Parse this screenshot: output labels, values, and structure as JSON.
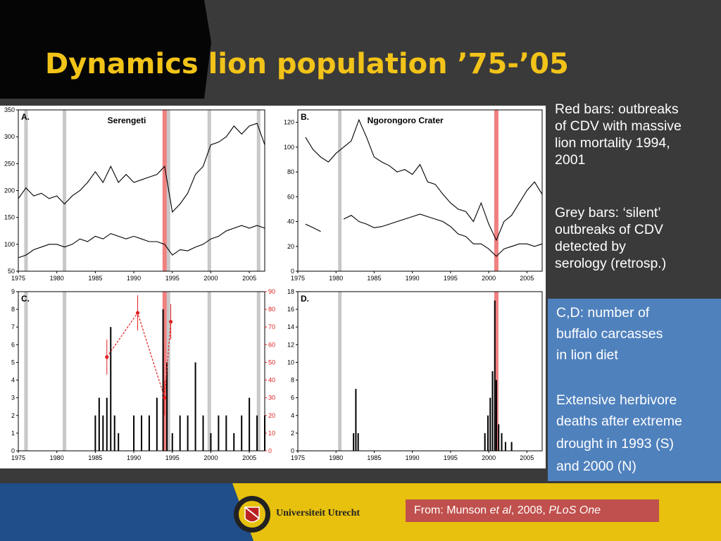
{
  "slide": {
    "title": "Dynamics lion population ’75-’05",
    "colors": {
      "background": "#3a3a3a",
      "title": "#f2c318",
      "blue_box": "#4f81bd",
      "source_box": "#c0504d",
      "outbreak_red": "#f08080",
      "silent_grey": "#c8c8c8",
      "bottom_band": "#e7c10e"
    }
  },
  "annotations": {
    "red_bars_1": "Red bars: outbreaks",
    "red_bars_2": "of CDV with massive",
    "red_bars_3": "lion mortality 1994,",
    "red_bars_4": "2001",
    "grey_bars_1": "Grey bars: ‘silent’",
    "grey_bars_2": "outbreaks of CDV",
    "grey_bars_3": "detected by",
    "grey_bars_4": "serology (retrosp.)",
    "cd_1": "C,D: number of",
    "cd_2": "buffalo carcasses",
    "cd_3": "in lion diet",
    "drought_1": "Extensive herbivore",
    "drought_2": "deaths after extreme",
    "drought_3": "drought in 1993 (S)",
    "drought_4": "and 2000 (N)"
  },
  "source": {
    "prefix": "From:  Munson ",
    "etal": "et al",
    "mid": ", 2008, ",
    "journal": "PLoS One"
  },
  "footer": {
    "university": "Universiteit Utrecht",
    "logo_icon": "utrecht-sun-seal-icon"
  },
  "chart_data": [
    {
      "panel": "A.",
      "title": "Serengeti",
      "type": "line",
      "xlim": [
        1975,
        2007
      ],
      "ylim": [
        50,
        350
      ],
      "xticks": [
        "1975",
        "1980",
        "1985",
        "1990",
        "1995",
        "2000",
        "2005"
      ],
      "yticks": [
        "50",
        "100",
        "150",
        "200",
        "250",
        "300",
        "350"
      ],
      "outbreak_years": [
        1994
      ],
      "silent_years": [
        1976,
        1981,
        1994.5,
        1999.8,
        2006.2
      ],
      "series": [
        {
          "x": [
            1975,
            1976,
            1977,
            1978,
            1979,
            1980,
            1981,
            1982,
            1983,
            1984,
            1985,
            1986,
            1987,
            1988,
            1989,
            1990,
            1991,
            1992,
            1993,
            1994,
            1995,
            1996,
            1997,
            1998,
            1999,
            2000,
            2001,
            2002,
            2003,
            2004,
            2005,
            2006,
            2007
          ],
          "values": [
            185,
            205,
            190,
            195,
            185,
            190,
            175,
            190,
            200,
            215,
            235,
            215,
            245,
            215,
            230,
            215,
            220,
            225,
            230,
            245,
            160,
            175,
            195,
            230,
            245,
            285,
            290,
            300,
            320,
            305,
            320,
            325,
            285
          ]
        },
        {
          "x": [
            1975,
            1976,
            1977,
            1978,
            1979,
            1980,
            1981,
            1982,
            1983,
            1984,
            1985,
            1986,
            1987,
            1988,
            1989,
            1990,
            1991,
            1992,
            1993,
            1994,
            1995,
            1996,
            1997,
            1998,
            1999,
            2000,
            2001,
            2002,
            2003,
            2004,
            2005,
            2006,
            2007
          ],
          "values": [
            75,
            80,
            90,
            95,
            100,
            100,
            95,
            100,
            110,
            105,
            115,
            110,
            120,
            115,
            110,
            115,
            110,
            105,
            105,
            100,
            80,
            90,
            88,
            95,
            100,
            110,
            115,
            125,
            130,
            135,
            130,
            135,
            130
          ]
        }
      ]
    },
    {
      "panel": "B.",
      "title": "Ngorongoro Crater",
      "type": "line",
      "xlim": [
        1975,
        2007
      ],
      "ylim": [
        0,
        130
      ],
      "xticks": [
        "1975",
        "1980",
        "1985",
        "1990",
        "1995",
        "2000",
        "2005"
      ],
      "yticks": [
        "0",
        "20",
        "40",
        "60",
        "80",
        "100",
        "120"
      ],
      "outbreak_years": [
        2001
      ],
      "silent_years": [
        1980.5
      ],
      "series": [
        {
          "x": [
            1976,
            1977,
            1978,
            1979,
            1980,
            1981,
            1982,
            1983,
            1984,
            1985,
            1986,
            1987,
            1988,
            1989,
            1990,
            1991,
            1992,
            1993,
            1994,
            1995,
            1996,
            1997,
            1998,
            1999,
            2000,
            2001,
            2002,
            2003,
            2004,
            2005,
            2006,
            2007
          ],
          "values": [
            108,
            98,
            92,
            88,
            95,
            100,
            105,
            122,
            108,
            92,
            88,
            85,
            80,
            82,
            78,
            86,
            72,
            70,
            62,
            55,
            50,
            48,
            40,
            55,
            38,
            25,
            40,
            45,
            55,
            65,
            72,
            62
          ]
        },
        {
          "x": [
            1976,
            1977,
            1978,
            1979,
            1980,
            1981,
            1982,
            1983,
            1984,
            1985,
            1986,
            1987,
            1988,
            1989,
            1990,
            1991,
            1992,
            1993,
            1994,
            1995,
            1996,
            1997,
            1998,
            1999,
            2000,
            2001,
            2002,
            2003,
            2004,
            2005,
            2006,
            2007
          ],
          "values": [
            38,
            35,
            32,
            null,
            null,
            42,
            45,
            40,
            38,
            35,
            36,
            38,
            40,
            42,
            44,
            46,
            44,
            42,
            40,
            36,
            30,
            28,
            22,
            22,
            18,
            12,
            18,
            20,
            22,
            22,
            20,
            22
          ]
        }
      ]
    },
    {
      "panel": "C.",
      "type": "bar",
      "xlim": [
        1975,
        2007
      ],
      "ylim": [
        0,
        9
      ],
      "y2lim": [
        0,
        90
      ],
      "xticks": [
        "1975",
        "1980",
        "1985",
        "1990",
        "1995",
        "2000",
        "2005"
      ],
      "yticks": [
        "0",
        "1",
        "2",
        "3",
        "4",
        "5",
        "6",
        "7",
        "8",
        "9"
      ],
      "y2ticks": [
        "0",
        "10",
        "20",
        "30",
        "40",
        "50",
        "60",
        "70",
        "80",
        "90"
      ],
      "outbreak_years": [
        1994
      ],
      "silent_years": [
        1976,
        1981,
        1994.5,
        1999.8,
        2006.2
      ],
      "series": [
        {
          "x": [
            1985,
            1985.5,
            1986,
            1986.5,
            1987,
            1987.5,
            1988,
            1990,
            1991,
            1992,
            1993,
            1993.8,
            1994.3,
            1995,
            1996,
            1997,
            1998,
            1999,
            2000,
            2001,
            2002,
            2003,
            2004,
            2005,
            2006,
            2007
          ],
          "values": [
            2,
            3,
            2,
            3,
            7,
            2,
            1,
            2,
            2,
            2,
            3,
            8,
            5,
            1,
            2,
            2,
            5,
            2,
            1,
            2,
            2,
            1,
            2,
            3,
            2,
            2
          ]
        },
        {
          "name": "red points (right axis)",
          "x": [
            1986.5,
            1990.5,
            1994,
            1994.8
          ],
          "values": [
            53,
            78,
            30,
            73
          ]
        }
      ]
    },
    {
      "panel": "D.",
      "type": "bar",
      "xlim": [
        1975,
        2007
      ],
      "ylim": [
        0,
        18
      ],
      "xticks": [
        "1975",
        "1980",
        "1985",
        "1990",
        "1995",
        "2000",
        "2005"
      ],
      "yticks": [
        "0",
        "2",
        "4",
        "6",
        "8",
        "10",
        "12",
        "14",
        "16",
        "18"
      ],
      "outbreak_years": [
        2001
      ],
      "silent_years": [
        1980.5
      ],
      "series": [
        {
          "x": [
            1982.3,
            1982.6,
            1982.9,
            1999.5,
            1999.9,
            2000.2,
            2000.5,
            2000.8,
            2001.0,
            2001.3,
            2001.7,
            2002.2,
            2003.0
          ],
          "values": [
            2,
            7,
            2,
            2,
            4,
            6,
            9,
            17,
            8,
            3,
            2,
            1,
            1
          ]
        }
      ]
    }
  ]
}
